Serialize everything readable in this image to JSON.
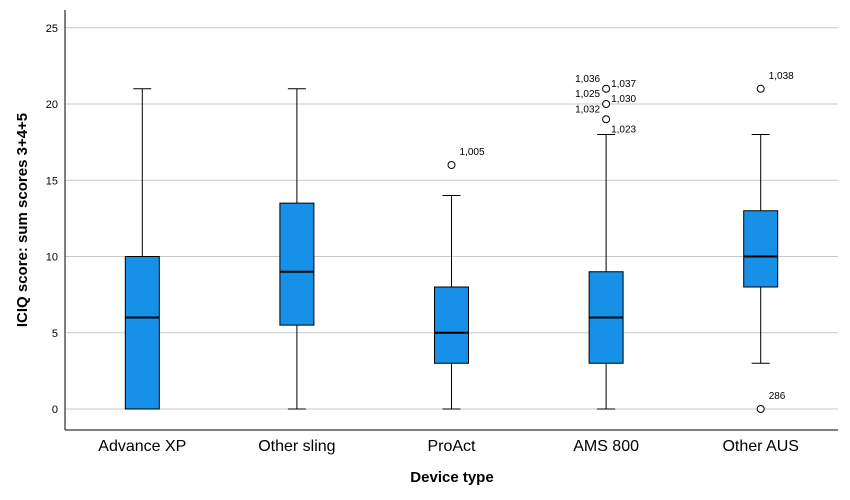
{
  "chart_data": {
    "type": "box",
    "xlabel": "Device type",
    "ylabel": "ICIQ score: sum scores 3+4+5",
    "ylim": [
      -1.3,
      27
    ],
    "yticks": [
      0,
      5,
      10,
      15,
      20,
      25
    ],
    "grid": true,
    "box_color": "#1790E8",
    "categories": [
      "Advance XP",
      "Other sling",
      "ProAct",
      "AMS 800",
      "Other AUS"
    ],
    "boxes": [
      {
        "category": "Advance XP",
        "whisker_low": 0,
        "q1": 0,
        "median": 6,
        "q3": 10,
        "whisker_high": 21,
        "outliers": []
      },
      {
        "category": "Other sling",
        "whisker_low": 0,
        "q1": 5.5,
        "median": 9,
        "q3": 13.5,
        "whisker_high": 21,
        "outliers": []
      },
      {
        "category": "ProAct",
        "whisker_low": 0,
        "q1": 3,
        "median": 5,
        "q3": 8,
        "whisker_high": 14,
        "outliers": [
          {
            "value": 16,
            "labels": [
              "1,005"
            ]
          }
        ]
      },
      {
        "category": "AMS 800",
        "whisker_low": 0,
        "q1": 3,
        "median": 6,
        "q3": 9,
        "whisker_high": 18,
        "outliers": [
          {
            "value": 19,
            "labels": [
              "1,032",
              "1,023"
            ]
          },
          {
            "value": 20,
            "labels": [
              "1,025",
              "1,030"
            ]
          },
          {
            "value": 21,
            "labels": [
              "1,036",
              "1,037"
            ]
          }
        ]
      },
      {
        "category": "Other AUS",
        "whisker_low": 3,
        "q1": 8,
        "median": 10,
        "q3": 13,
        "whisker_high": 18,
        "outliers": [
          {
            "value": 21,
            "labels": [
              "1,038"
            ]
          },
          {
            "value": 0,
            "labels": [
              "286"
            ]
          }
        ]
      }
    ]
  }
}
